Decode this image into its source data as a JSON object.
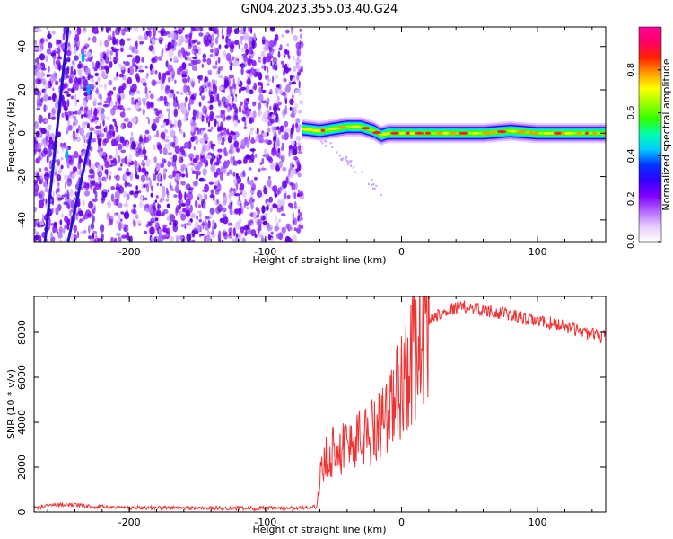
{
  "title": "GN04.2023.355.03.40.G24",
  "chart_data": [
    {
      "type": "heatmap",
      "xlabel": "Height of straight line (km)",
      "ylabel": "Frequency (Hz)",
      "xlim": [
        -270,
        150
      ],
      "ylim": [
        -50,
        49
      ],
      "xticks": [
        -200,
        -100,
        0,
        100
      ],
      "yticks": [
        -40,
        -20,
        0,
        20,
        40
      ],
      "colorbar": {
        "label": "Normalized spectral amplitude",
        "range": [
          0,
          1
        ],
        "ticks": [
          "0.0",
          "0.2",
          "0.4",
          "0.6",
          "0.8"
        ],
        "colors": [
          "#ffffff",
          "#e6ccff",
          "#b266ff",
          "#7f00ff",
          "#3300ff",
          "#0033ff",
          "#00ccff",
          "#00ffb0",
          "#33ff00",
          "#99ff00",
          "#ffff00",
          "#ff9900",
          "#ff2200",
          "#ff0066",
          "#ff0099"
        ]
      },
      "noise_region": {
        "x_from": -270,
        "x_to": -73,
        "description": "broadband low-amplitude noise"
      },
      "signal_trace": {
        "x": [
          -73,
          -60,
          -50,
          -40,
          -30,
          -20,
          -15,
          -10,
          0,
          20,
          40,
          60,
          80,
          100,
          120,
          150
        ],
        "y": [
          2,
          1,
          2,
          3,
          3,
          1,
          -1,
          0,
          0,
          0,
          0,
          0,
          1,
          0,
          0,
          0
        ]
      },
      "diagonal_streaks": [
        {
          "x": [
            -262,
            -245
          ],
          "y": [
            -50,
            49
          ]
        },
        {
          "x": [
            -245,
            -228
          ],
          "y": [
            -50,
            0
          ]
        }
      ]
    },
    {
      "type": "line",
      "xlabel": "Height of straight line (km)",
      "ylabel": "SNR (10 * v/v)",
      "xlim": [
        -270,
        150
      ],
      "ylim": [
        0,
        9600
      ],
      "xticks": [
        -200,
        -100,
        0,
        100
      ],
      "yticks": [
        0,
        2000,
        4000,
        6000,
        8000
      ],
      "color": "#ee3333",
      "series": [
        {
          "x": [
            -270,
            -250,
            -230,
            -200,
            -150,
            -100,
            -70,
            -62,
            -60,
            -55,
            -50,
            -40,
            -30,
            -20,
            -15,
            -10,
            0,
            10,
            20,
            30,
            40,
            50,
            60,
            70,
            80,
            90,
            100,
            110,
            120,
            130,
            140,
            150
          ],
          "values": [
            200,
            350,
            250,
            200,
            180,
            160,
            180,
            250,
            1500,
            2500,
            2800,
            3000,
            3300,
            3700,
            4300,
            4200,
            5800,
            7200,
            8600,
            8900,
            9100,
            9150,
            9000,
            8900,
            8800,
            8600,
            8500,
            8400,
            8300,
            8100,
            7900,
            7800
          ]
        }
      ]
    }
  ]
}
